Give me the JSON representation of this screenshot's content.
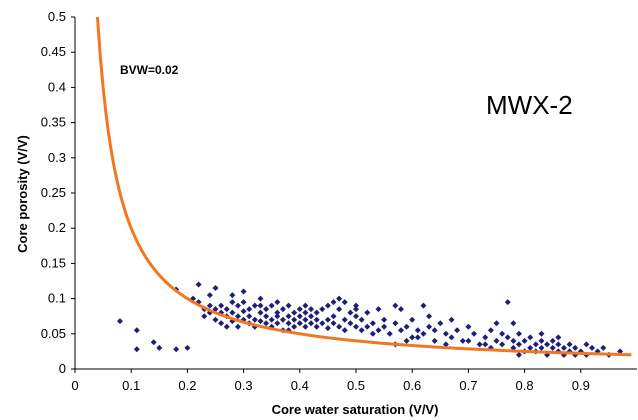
{
  "chart_data": {
    "type": "scatter",
    "title": "",
    "xlabel": "Core water saturation (V/V)",
    "ylabel": "Core porosity (V/V)",
    "xlim": [
      0,
      1.0
    ],
    "ylim": [
      0,
      0.5
    ],
    "x_ticks": [
      "0",
      "0.1",
      "0.2",
      "0.3",
      "0.4",
      "0.5",
      "0.6",
      "0.7",
      "0.8",
      "0.9"
    ],
    "y_ticks": [
      "0",
      "0.05",
      "0.1",
      "0.15",
      "0.2",
      "0.25",
      "0.3",
      "0.35",
      "0.4",
      "0.45",
      "0.5"
    ],
    "grid": false,
    "annotations": {
      "bvw_label": "BVW=0.02",
      "well_label": "MWX-2"
    },
    "colors": {
      "points": "#1f1f7a",
      "curve": "#f07820"
    },
    "curve": {
      "name": "BVW=0.02",
      "bvw": 0.02,
      "x_start": 0.04,
      "x_end": 0.99
    },
    "points": [
      [
        0.08,
        0.068
      ],
      [
        0.11,
        0.055
      ],
      [
        0.11,
        0.028
      ],
      [
        0.14,
        0.038
      ],
      [
        0.15,
        0.03
      ],
      [
        0.18,
        0.028
      ],
      [
        0.18,
        0.113
      ],
      [
        0.2,
        0.03
      ],
      [
        0.21,
        0.1
      ],
      [
        0.22,
        0.12
      ],
      [
        0.22,
        0.095
      ],
      [
        0.23,
        0.085
      ],
      [
        0.23,
        0.075
      ],
      [
        0.24,
        0.09
      ],
      [
        0.24,
        0.08
      ],
      [
        0.24,
        0.105
      ],
      [
        0.25,
        0.085
      ],
      [
        0.25,
        0.07
      ],
      [
        0.25,
        0.115
      ],
      [
        0.26,
        0.08
      ],
      [
        0.26,
        0.09
      ],
      [
        0.27,
        0.075
      ],
      [
        0.27,
        0.085
      ],
      [
        0.27,
        0.06
      ],
      [
        0.28,
        0.08
      ],
      [
        0.28,
        0.068
      ],
      [
        0.28,
        0.105
      ],
      [
        0.29,
        0.075
      ],
      [
        0.29,
        0.09
      ],
      [
        0.29,
        0.06
      ],
      [
        0.3,
        0.07
      ],
      [
        0.3,
        0.082
      ],
      [
        0.3,
        0.095
      ],
      [
        0.31,
        0.065
      ],
      [
        0.31,
        0.085
      ],
      [
        0.31,
        0.075
      ],
      [
        0.32,
        0.07
      ],
      [
        0.32,
        0.09
      ],
      [
        0.32,
        0.06
      ],
      [
        0.33,
        0.08
      ],
      [
        0.33,
        0.1
      ],
      [
        0.33,
        0.068
      ],
      [
        0.34,
        0.065
      ],
      [
        0.34,
        0.085
      ],
      [
        0.34,
        0.075
      ],
      [
        0.35,
        0.07
      ],
      [
        0.35,
        0.09
      ],
      [
        0.35,
        0.06
      ],
      [
        0.36,
        0.08
      ],
      [
        0.36,
        0.065
      ],
      [
        0.36,
        0.095
      ],
      [
        0.37,
        0.07
      ],
      [
        0.37,
        0.085
      ],
      [
        0.37,
        0.055
      ],
      [
        0.38,
        0.075
      ],
      [
        0.38,
        0.065
      ],
      [
        0.38,
        0.09
      ],
      [
        0.39,
        0.07
      ],
      [
        0.39,
        0.08
      ],
      [
        0.39,
        0.06
      ],
      [
        0.4,
        0.075
      ],
      [
        0.4,
        0.065
      ],
      [
        0.4,
        0.085
      ],
      [
        0.41,
        0.07
      ],
      [
        0.41,
        0.09
      ],
      [
        0.41,
        0.06
      ],
      [
        0.42,
        0.065
      ],
      [
        0.42,
        0.075
      ],
      [
        0.43,
        0.08
      ],
      [
        0.43,
        0.06
      ],
      [
        0.43,
        0.07
      ],
      [
        0.44,
        0.065
      ],
      [
        0.44,
        0.085
      ],
      [
        0.45,
        0.07
      ],
      [
        0.45,
        0.058
      ],
      [
        0.46,
        0.075
      ],
      [
        0.46,
        0.065
      ],
      [
        0.47,
        0.1
      ],
      [
        0.47,
        0.06
      ],
      [
        0.47,
        0.085
      ],
      [
        0.48,
        0.07
      ],
      [
        0.48,
        0.095
      ],
      [
        0.48,
        0.055
      ],
      [
        0.49,
        0.08
      ],
      [
        0.49,
        0.065
      ],
      [
        0.5,
        0.06
      ],
      [
        0.5,
        0.075
      ],
      [
        0.5,
        0.09
      ],
      [
        0.51,
        0.07
      ],
      [
        0.51,
        0.055
      ],
      [
        0.52,
        0.06
      ],
      [
        0.52,
        0.08
      ],
      [
        0.53,
        0.065
      ],
      [
        0.53,
        0.05
      ],
      [
        0.54,
        0.085
      ],
      [
        0.54,
        0.055
      ],
      [
        0.55,
        0.06
      ],
      [
        0.55,
        0.07
      ],
      [
        0.56,
        0.05
      ],
      [
        0.57,
        0.09
      ],
      [
        0.57,
        0.065
      ],
      [
        0.58,
        0.085
      ],
      [
        0.58,
        0.055
      ],
      [
        0.59,
        0.06
      ],
      [
        0.6,
        0.045
      ],
      [
        0.6,
        0.07
      ],
      [
        0.61,
        0.055
      ],
      [
        0.62,
        0.09
      ],
      [
        0.62,
        0.05
      ],
      [
        0.63,
        0.06
      ],
      [
        0.64,
        0.04
      ],
      [
        0.65,
        0.065
      ],
      [
        0.66,
        0.05
      ],
      [
        0.67,
        0.045
      ],
      [
        0.68,
        0.055
      ],
      [
        0.69,
        0.04
      ],
      [
        0.7,
        0.06
      ],
      [
        0.71,
        0.05
      ],
      [
        0.72,
        0.035
      ],
      [
        0.73,
        0.045
      ],
      [
        0.74,
        0.055
      ],
      [
        0.74,
        0.03
      ],
      [
        0.75,
        0.04
      ],
      [
        0.75,
        0.065
      ],
      [
        0.76,
        0.035
      ],
      [
        0.76,
        0.05
      ],
      [
        0.77,
        0.045
      ],
      [
        0.77,
        0.095
      ],
      [
        0.78,
        0.04
      ],
      [
        0.78,
        0.065
      ],
      [
        0.78,
        0.03
      ],
      [
        0.79,
        0.035
      ],
      [
        0.79,
        0.05
      ],
      [
        0.8,
        0.04
      ],
      [
        0.8,
        0.025
      ],
      [
        0.81,
        0.03
      ],
      [
        0.81,
        0.045
      ],
      [
        0.82,
        0.035
      ],
      [
        0.82,
        0.025
      ],
      [
        0.83,
        0.04
      ],
      [
        0.83,
        0.03
      ],
      [
        0.84,
        0.035
      ],
      [
        0.84,
        0.02
      ],
      [
        0.85,
        0.03
      ],
      [
        0.85,
        0.04
      ],
      [
        0.86,
        0.025
      ],
      [
        0.86,
        0.035
      ],
      [
        0.87,
        0.03
      ],
      [
        0.87,
        0.02
      ],
      [
        0.88,
        0.035
      ],
      [
        0.88,
        0.025
      ],
      [
        0.89,
        0.03
      ],
      [
        0.9,
        0.025
      ],
      [
        0.91,
        0.035
      ],
      [
        0.91,
        0.02
      ],
      [
        0.92,
        0.03
      ],
      [
        0.93,
        0.025
      ],
      [
        0.94,
        0.03
      ],
      [
        0.95,
        0.02
      ],
      [
        0.97,
        0.025
      ],
      [
        0.59,
        0.04
      ],
      [
        0.61,
        0.045
      ],
      [
        0.66,
        0.035
      ],
      [
        0.7,
        0.04
      ],
      [
        0.45,
        0.09
      ],
      [
        0.38,
        0.055
      ],
      [
        0.26,
        0.065
      ],
      [
        0.57,
        0.035
      ],
      [
        0.63,
        0.075
      ],
      [
        0.64,
        0.055
      ],
      [
        0.67,
        0.07
      ],
      [
        0.73,
        0.035
      ],
      [
        0.79,
        0.02
      ],
      [
        0.83,
        0.05
      ],
      [
        0.86,
        0.045
      ],
      [
        0.89,
        0.02
      ],
      [
        0.3,
        0.11
      ],
      [
        0.28,
        0.095
      ],
      [
        0.33,
        0.09
      ],
      [
        0.42,
        0.085
      ],
      [
        0.5,
        0.085
      ],
      [
        0.46,
        0.095
      ],
      [
        0.41,
        0.08
      ],
      [
        0.36,
        0.075
      ]
    ]
  }
}
